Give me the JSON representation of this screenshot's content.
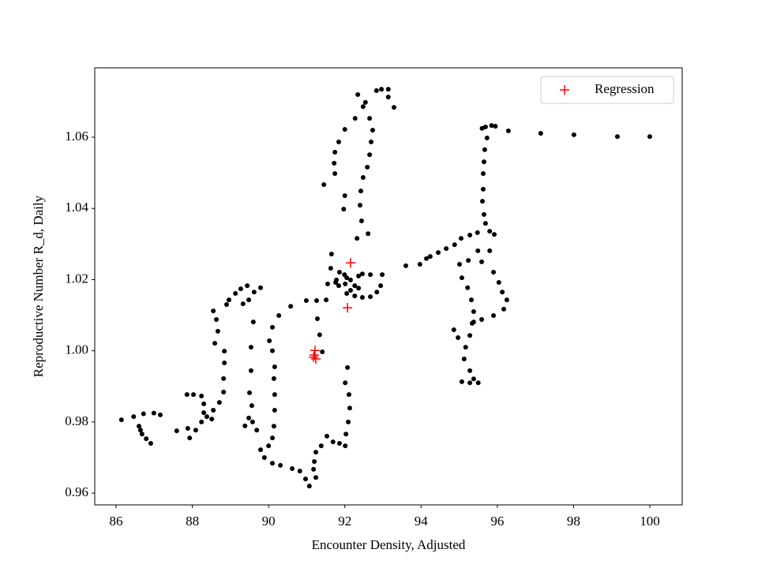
{
  "chart_data": {
    "type": "scatter",
    "xlabel": "Encounter Density, Adjusted",
    "ylabel": "Reproductive Number R_d, Daily",
    "xlim": [
      85.44,
      100.85
    ],
    "ylim": [
      0.9567,
      1.0795
    ],
    "xticks": [
      86,
      88,
      90,
      92,
      94,
      96,
      98,
      100
    ],
    "yticks": [
      0.96,
      0.98,
      {
        "value": 1,
        "label": "1.00"
      },
      1.02,
      1.04,
      1.06
    ],
    "legend": "upper right",
    "series": [
      {
        "color": "#000000",
        "marker": "o",
        "x": [
          100.0,
          99.15,
          98.01,
          97.14,
          96.29,
          95.95,
          95.85,
          95.69,
          95.6,
          95.73,
          95.67,
          95.65,
          95.63,
          95.63,
          95.61,
          95.65,
          95.69,
          95.8,
          95.92,
          95.48,
          95.28,
          95.05,
          94.88,
          94.66,
          94.45,
          94.24,
          94.14,
          93.97,
          93.6,
          95.01,
          95.07,
          95.22,
          95.32,
          95.38,
          95.34,
          95.28,
          95.17,
          95.13,
          95.28,
          95.38,
          95.5,
          95.28,
          95.07,
          94.97,
          94.86,
          95.24,
          95.59,
          95.9,
          96.04,
          96.13,
          96.25,
          96.17,
          95.9,
          95.59,
          95.38,
          95.49,
          95.8,
          92.61,
          92.44,
          92.4,
          92.42,
          92.48,
          92.59,
          92.65,
          92.69,
          92.73,
          92.65,
          92.48,
          92.34,
          92.54,
          92.83,
          92.96,
          93.14,
          93.14,
          93.29,
          92.27,
          92.0,
          91.84,
          91.74,
          91.72,
          91.74,
          91.45,
          92.0,
          91.97,
          92.32,
          91.65,
          91.63,
          91.78,
          91.86,
          91.99,
          92.05,
          92.15,
          92.01,
          91.84,
          92.26,
          92.36,
          92.26,
          92.46,
          92.67,
          92.84,
          92.94,
          92.98,
          92.67,
          92.46,
          92.15,
          92.05,
          92.36,
          91.76,
          91.55,
          91.51,
          91.26,
          91.28,
          91.34,
          91.41,
          92.07,
          92.01,
          92.11,
          92.13,
          92.09,
          92.03,
          92.01,
          91.86,
          91.69,
          91.53,
          91.38,
          91.24,
          91.2,
          91.18,
          91.24,
          91.07,
          90.97,
          90.82,
          90.62,
          90.31,
          90.1,
          89.89,
          89.79,
          90.0,
          90.1,
          90.14,
          90.16,
          90.16,
          90.14,
          90.16,
          90.1,
          90.02,
          90.1,
          90.27,
          90.58,
          90.99,
          89.79,
          89.62,
          89.48,
          89.33,
          89.6,
          89.54,
          89.54,
          89.5,
          89.56,
          89.48,
          89.38,
          89.58,
          89.69,
          89.44,
          89.27,
          89.13,
          88.96,
          88.9,
          88.55,
          88.63,
          88.67,
          88.59,
          88.84,
          88.84,
          88.82,
          88.82,
          88.71,
          88.55,
          88.38,
          88.24,
          88.09,
          87.93,
          87.88,
          87.86,
          88.03,
          88.24,
          88.3,
          88.3,
          88.51,
          87.59,
          86.14,
          86.46,
          86.6,
          86.68,
          86.79,
          86.91,
          86.72,
          86.99,
          87.16,
          86.64
        ],
        "y": [
          1.0602,
          1.0602,
          1.0607,
          1.0611,
          1.0618,
          1.0631,
          1.0633,
          1.0629,
          1.0625,
          1.0598,
          1.0565,
          1.0531,
          1.0498,
          1.0454,
          1.042,
          1.0383,
          1.0358,
          1.0336,
          1.0327,
          1.0332,
          1.0325,
          1.0316,
          1.0298,
          1.0287,
          1.0276,
          1.0265,
          1.0259,
          1.0243,
          1.0239,
          1.0243,
          1.0205,
          1.0177,
          1.0143,
          1.011,
          1.0077,
          1.0043,
          1.001,
          0.9977,
          0.9944,
          0.9921,
          0.991,
          0.991,
          0.9913,
          1.0037,
          1.0059,
          1.0254,
          1.025,
          1.0221,
          1.0192,
          1.0165,
          1.0143,
          1.0117,
          1.0099,
          1.0088,
          1.0081,
          1.0281,
          1.0281,
          1.0329,
          1.0365,
          1.0409,
          1.0449,
          1.0487,
          1.0516,
          1.0551,
          1.0587,
          1.062,
          1.0653,
          1.0686,
          1.072,
          1.0698,
          1.0731,
          1.0735,
          1.0735,
          1.0713,
          1.0684,
          1.0653,
          1.0622,
          1.0587,
          1.0558,
          1.0527,
          1.0498,
          1.0467,
          1.0436,
          1.0398,
          1.0316,
          1.0272,
          1.0232,
          1.0199,
          1.0221,
          1.0214,
          1.0205,
          1.0199,
          1.0188,
          1.0183,
          1.0183,
          1.0176,
          1.0154,
          1.015,
          1.0152,
          1.0165,
          1.0183,
          1.0214,
          1.0214,
          1.0216,
          1.017,
          1.0161,
          1.021,
          1.0192,
          1.0188,
          1.0143,
          1.0141,
          1.009,
          1.0045,
          0.9997,
          0.9953,
          0.991,
          0.9877,
          0.9839,
          0.98,
          0.9766,
          0.9733,
          0.974,
          0.9744,
          0.976,
          0.9733,
          0.9715,
          0.9689,
          0.9667,
          0.9644,
          0.962,
          0.964,
          0.9662,
          0.9669,
          0.9678,
          0.9684,
          0.97,
          0.9722,
          0.9733,
          0.9755,
          0.9788,
          0.9833,
          0.9877,
          0.9922,
          0.9955,
          1.0,
          1.0028,
          1.0066,
          1.0099,
          1.0125,
          1.0141,
          1.0177,
          1.0165,
          1.0143,
          1.0132,
          1.0081,
          1.001,
          0.9944,
          0.9882,
          0.9846,
          0.9811,
          0.9789,
          0.98,
          0.9777,
          1.0183,
          1.0174,
          1.0161,
          1.0143,
          1.013,
          1.0112,
          1.0088,
          1.0055,
          1.0021,
          0.9999,
          0.9966,
          0.9922,
          0.9884,
          0.9855,
          0.9833,
          0.9815,
          0.98,
          0.9777,
          0.9755,
          0.9782,
          0.9877,
          0.9877,
          0.9873,
          0.9851,
          0.9826,
          0.9808,
          0.9775,
          0.9806,
          0.9815,
          0.9788,
          0.9766,
          0.9753,
          0.974,
          0.9823,
          0.9825,
          0.982,
          0.9777
        ]
      },
      {
        "name": "Regression",
        "color": "#ff0000",
        "marker": "+",
        "x": [
          92.15,
          92.07,
          91.22,
          91.2,
          91.24,
          91.18
        ],
        "y": [
          1.0247,
          1.0121,
          1.0001,
          0.9988,
          0.9977,
          0.9982
        ]
      }
    ]
  }
}
